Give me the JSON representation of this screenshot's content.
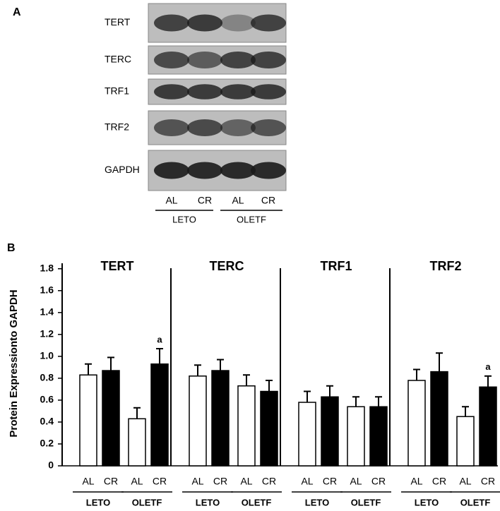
{
  "panel_a": {
    "label": "A",
    "rows": [
      "TERT",
      "TERC",
      "TRF1",
      "TRF2",
      "GAPDH"
    ],
    "lanes": [
      "AL",
      "CR",
      "AL",
      "CR"
    ],
    "groups": [
      "LETO",
      "OLETF"
    ]
  },
  "chart_data": {
    "type": "bar",
    "panel_label": "B",
    "y_label": "Protein Expressionto GAPDH",
    "ylim": [
      0,
      1.85
    ],
    "yticks": [
      0,
      0.2,
      0.4,
      0.6,
      0.8,
      {
        "value": 1,
        "label": "1.0"
      },
      1.2,
      1.4,
      1.6,
      1.8
    ],
    "bar_labels": [
      "AL",
      "CR"
    ],
    "colors": [
      "#ffffff",
      "#000000"
    ],
    "groups": [
      "LETO",
      "OLETF"
    ],
    "panels": [
      {
        "title": "TERT",
        "values": [
          0.83,
          0.87,
          0.43,
          0.93
        ],
        "errors": [
          0.1,
          0.12,
          0.1,
          0.14
        ],
        "annotations": [
          {
            "bar": 3,
            "text": "a"
          }
        ]
      },
      {
        "title": "TERC",
        "values": [
          0.82,
          0.87,
          0.73,
          0.68
        ],
        "errors": [
          0.1,
          0.1,
          0.1,
          0.1
        ],
        "annotations": []
      },
      {
        "title": "TRF1",
        "values": [
          0.58,
          0.63,
          0.54,
          0.54
        ],
        "errors": [
          0.1,
          0.1,
          0.09,
          0.09
        ],
        "annotations": []
      },
      {
        "title": "TRF2",
        "values": [
          0.78,
          0.86,
          0.45,
          0.72
        ],
        "errors": [
          0.1,
          0.17,
          0.09,
          0.1
        ],
        "annotations": [
          {
            "bar": 3,
            "text": "a"
          }
        ]
      }
    ]
  }
}
